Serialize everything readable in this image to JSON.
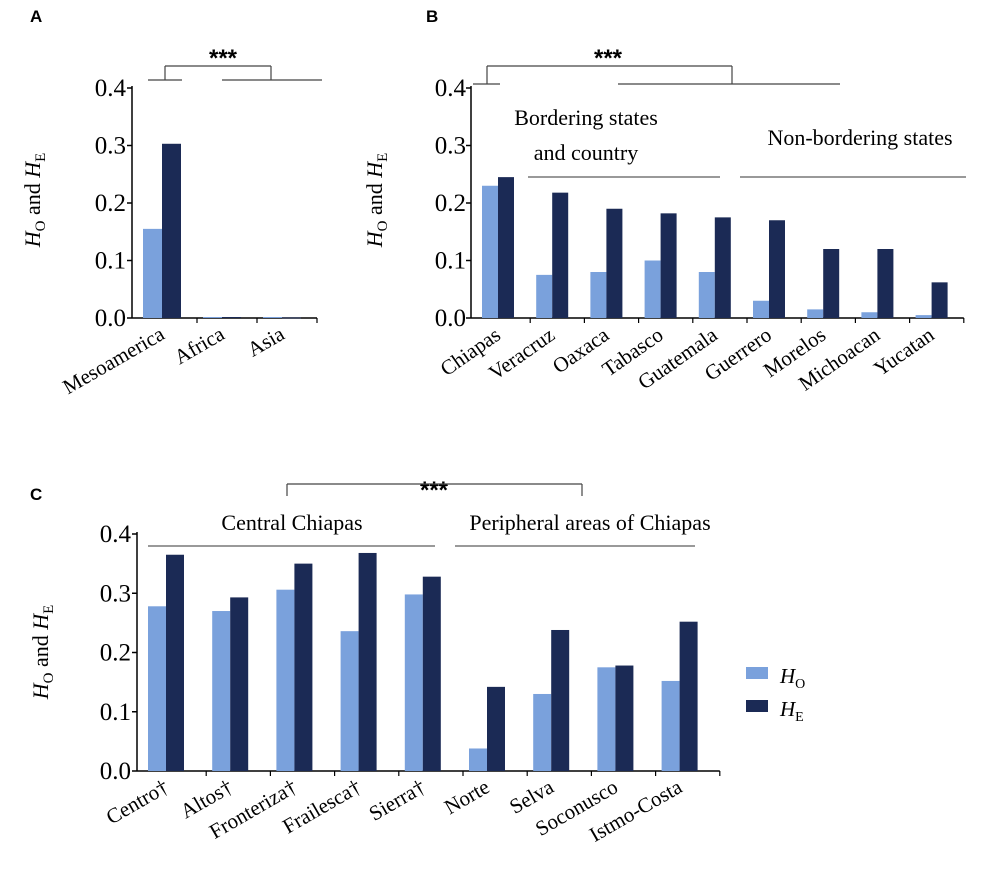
{
  "colors": {
    "ho": "#7aa1dc",
    "he": "#1b2a55",
    "axis": "#000000",
    "bracket": "#444444"
  },
  "legend": {
    "ho_base": "H",
    "ho_sub": "O",
    "he_base": "H",
    "he_sub": "E"
  },
  "chart_data": [
    {
      "type": "bar",
      "panel": "A",
      "ylabel": {
        "h1": "H",
        "s1": "O",
        "mid": " and ",
        "h2": "H",
        "s2": "E"
      },
      "ylim": [
        0,
        0.4
      ],
      "ticks": [
        "0.0",
        "0.1",
        "0.2",
        "0.3",
        "0.4"
      ],
      "categories": [
        "Mesoamerica",
        "Africa",
        "Asia"
      ],
      "series": [
        {
          "name": "HO",
          "values": [
            0.155,
            0.0,
            0.0
          ]
        },
        {
          "name": "HE",
          "values": [
            0.303,
            0.0,
            0.001
          ]
        }
      ],
      "significance": "***",
      "groups": []
    },
    {
      "type": "bar",
      "panel": "B",
      "ylabel": {
        "h1": "H",
        "s1": "O",
        "mid": " and ",
        "h2": "H",
        "s2": "E"
      },
      "ylim": [
        0,
        0.4
      ],
      "ticks": [
        "0.0",
        "0.1",
        "0.2",
        "0.3",
        "0.4"
      ],
      "categories": [
        "Chiapas",
        "Veracruz",
        "Oaxaca",
        "Tabasco",
        "Guatemala",
        "Guerrero",
        "Morelos",
        "Michoacan",
        "Yucatan"
      ],
      "series": [
        {
          "name": "HO",
          "values": [
            0.23,
            0.075,
            0.08,
            0.1,
            0.08,
            0.03,
            0.015,
            0.01,
            0.005
          ]
        },
        {
          "name": "HE",
          "values": [
            0.245,
            0.218,
            0.19,
            0.182,
            0.175,
            0.17,
            0.12,
            0.12,
            0.062
          ]
        }
      ],
      "significance": "***",
      "groups": [
        {
          "label_lines": [
            "Bordering states",
            "and country"
          ]
        },
        {
          "label_lines": [
            "Non-bordering states"
          ]
        }
      ]
    },
    {
      "type": "bar",
      "panel": "C",
      "ylabel": {
        "h1": "H",
        "s1": "O",
        "mid": " and ",
        "h2": "H",
        "s2": "E"
      },
      "ylim": [
        0,
        0.4
      ],
      "ticks": [
        "0.0",
        "0.1",
        "0.2",
        "0.3",
        "0.4"
      ],
      "categories": [
        "Centro†",
        "Altos†",
        "Fronteriza†",
        "Frailesca†",
        "Sierra†",
        "Norte",
        "Selva",
        "Soconusco",
        "Istmo-Costa"
      ],
      "series": [
        {
          "name": "HO",
          "values": [
            0.278,
            0.27,
            0.306,
            0.236,
            0.298,
            0.038,
            0.13,
            0.175,
            0.152
          ]
        },
        {
          "name": "HE",
          "values": [
            0.365,
            0.293,
            0.35,
            0.368,
            0.328,
            0.142,
            0.238,
            0.178,
            0.252
          ]
        }
      ],
      "significance": "***",
      "groups": [
        {
          "label_lines": [
            "Central Chiapas"
          ]
        },
        {
          "label_lines": [
            "Peripheral areas of Chiapas"
          ]
        }
      ]
    }
  ]
}
